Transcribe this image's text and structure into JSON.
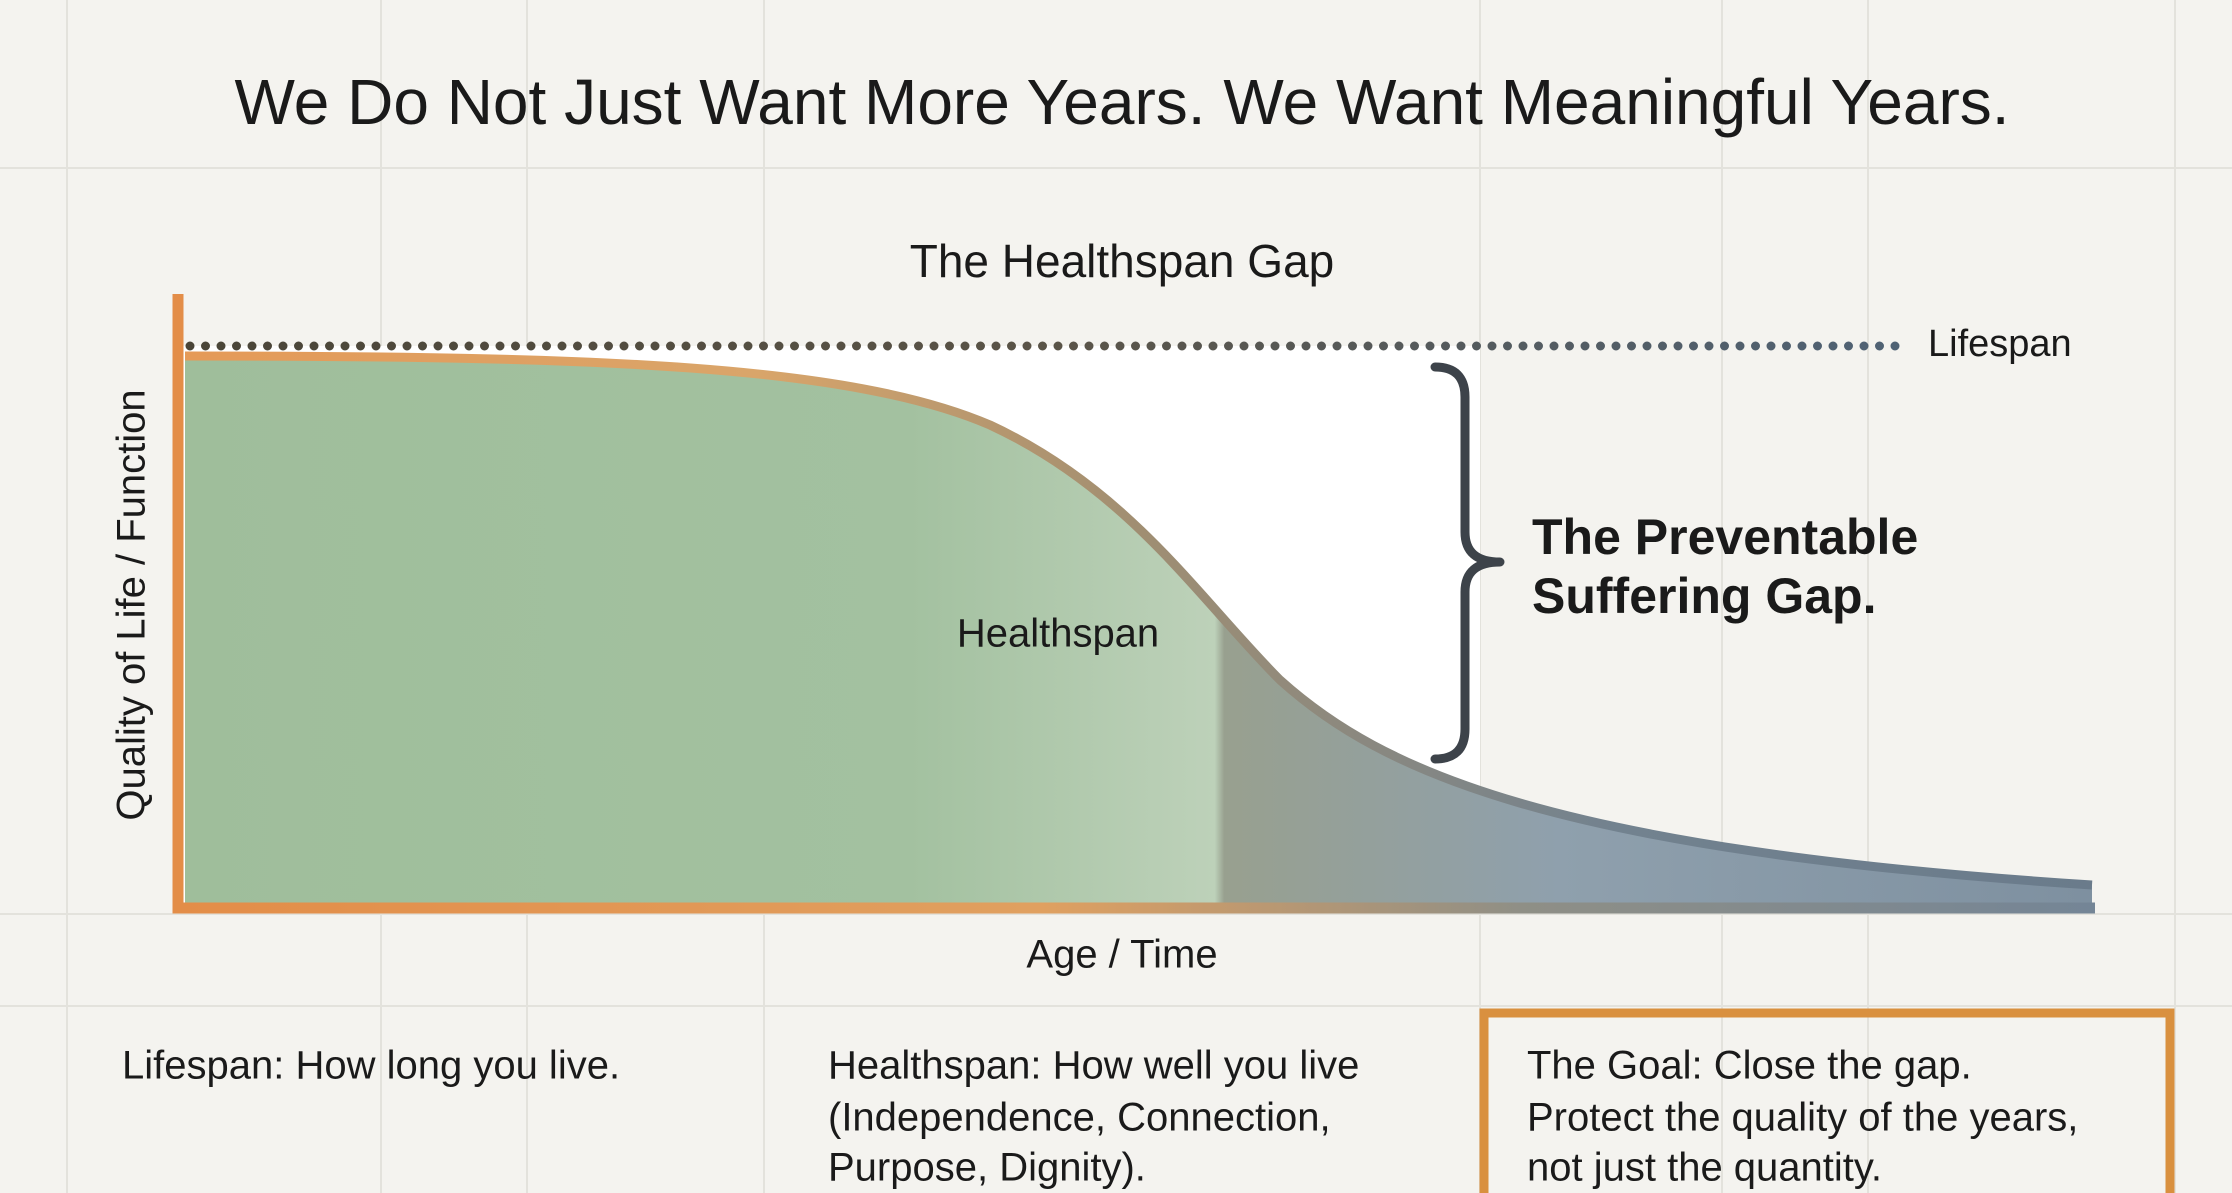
{
  "title": "We Do Not Just Want More Years. We Want Meaningful Years.",
  "diagram": {
    "subtitle": "The Healthspan Gap",
    "y_axis_label": "Quality of Life / Function",
    "x_axis_label": "Age / Time",
    "lifespan_label": "Lifespan",
    "healthspan_label": "Healthspan",
    "gap_label": [
      "The Preventable",
      "Suffering Gap."
    ]
  },
  "captions": [
    {
      "lines": [
        "Lifespan: How long you live."
      ]
    },
    {
      "lines": [
        "Healthspan: How well you live",
        "(Independence, Connection,",
        "Purpose, Dignity)."
      ]
    },
    {
      "lines": [
        "The Goal: Close the gap.",
        "Protect the quality of the years,",
        "not just the quantity."
      ]
    }
  ]
}
